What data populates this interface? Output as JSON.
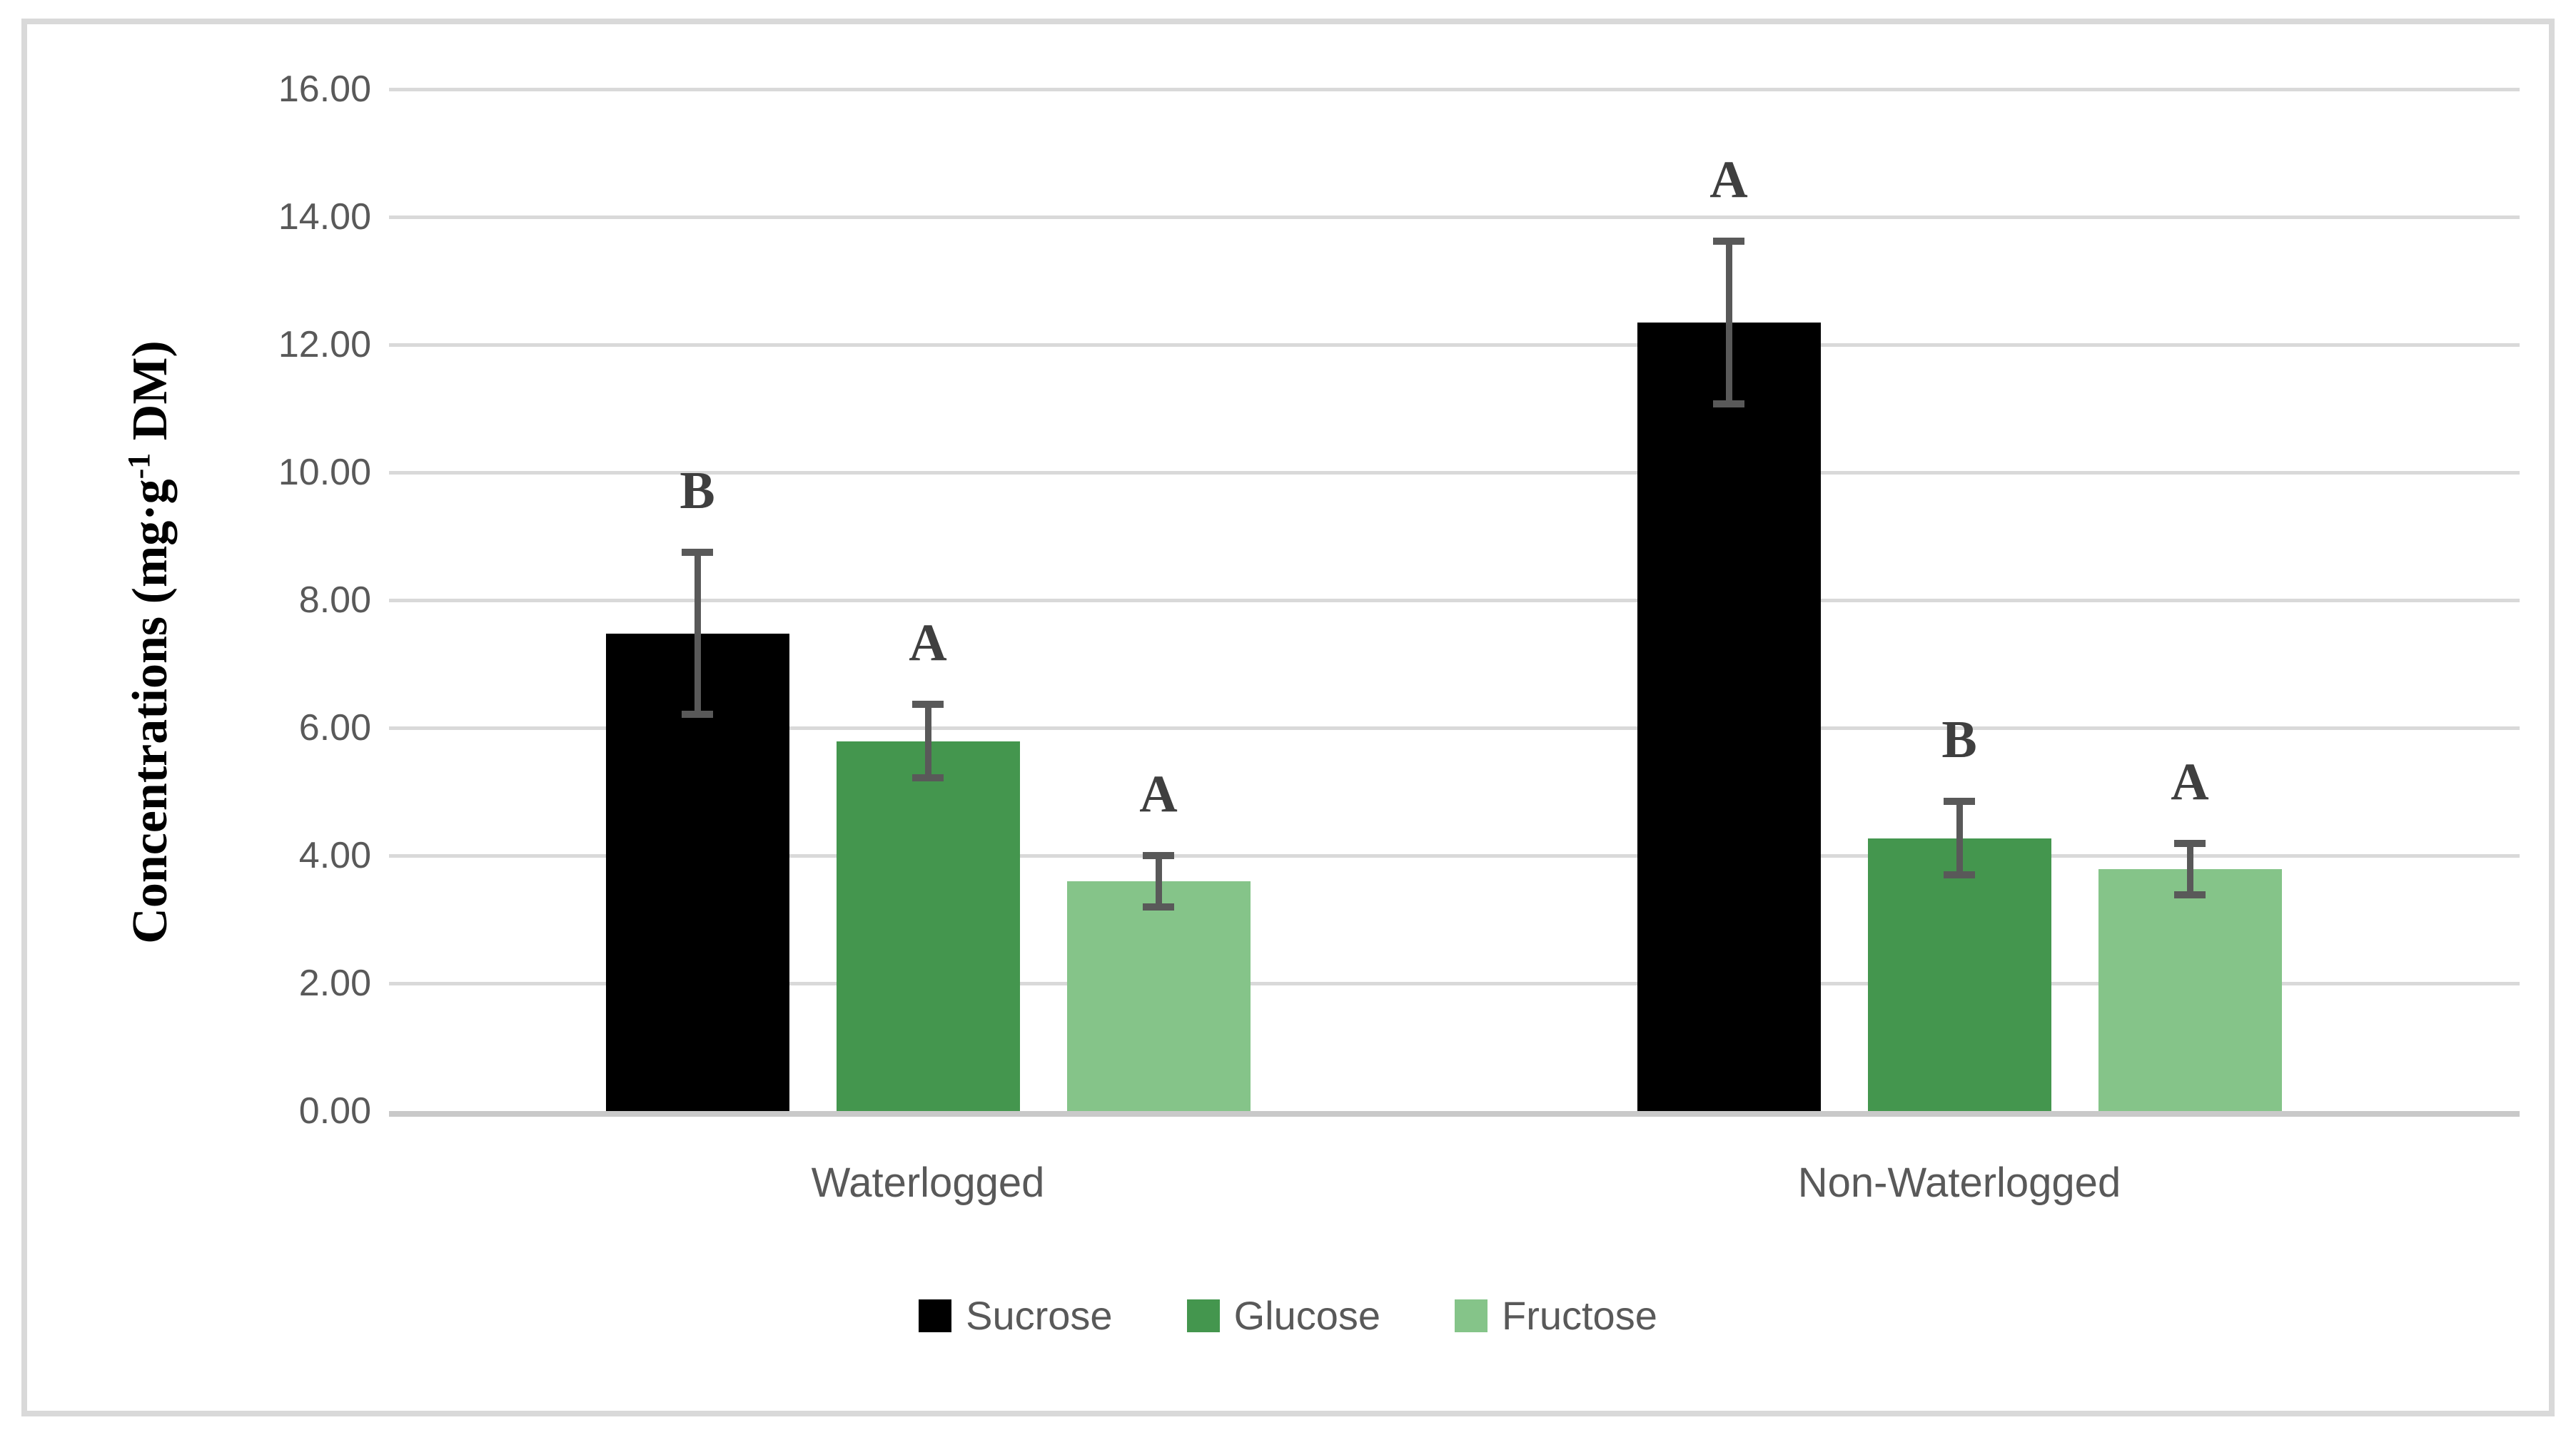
{
  "chart_data": {
    "type": "bar",
    "title": "",
    "categories": [
      "Waterlogged",
      "Non-Waterlogged"
    ],
    "series": [
      {
        "name": "Sucrose",
        "color": "#000000",
        "values": [
          7.48,
          12.35
        ],
        "errors": [
          1.32,
          1.33
        ],
        "letters": [
          "B",
          "A"
        ]
      },
      {
        "name": "Glucose",
        "color": "#44964E",
        "values": [
          5.79,
          4.27
        ],
        "errors": [
          0.63,
          0.63
        ],
        "letters": [
          "A",
          "B"
        ]
      },
      {
        "name": "Fructose",
        "color": "#85C489",
        "values": [
          3.6,
          3.79
        ],
        "errors": [
          0.46,
          0.46
        ],
        "letters": [
          "A",
          "A"
        ]
      }
    ],
    "ylabel": {
      "pre": "Concentrations (mg·g",
      "sup": "-1",
      "post": " DM)"
    },
    "xlabel": "",
    "ylim": [
      0,
      16
    ],
    "yticks": [
      {
        "value": 0,
        "label": "0.00"
      },
      {
        "value": 2,
        "label": "2.00"
      },
      {
        "value": 4,
        "label": "4.00"
      },
      {
        "value": 6,
        "label": "6.00"
      },
      {
        "value": 8,
        "label": "8.00"
      },
      {
        "value": 10,
        "label": "10.00"
      },
      {
        "value": 12,
        "label": "12.00"
      },
      {
        "value": 14,
        "label": "14.00"
      },
      {
        "value": 16,
        "label": "16.00"
      }
    ],
    "grid": true,
    "error_bars": true,
    "legend_position": "bottom"
  },
  "colors": {
    "bar_sucrose": "#000000",
    "bar_glucose": "#44964E",
    "bar_fructose": "#85C489",
    "error_bar": "#595959",
    "significance_letter": "#3F3F3F",
    "axis_text": "#595959",
    "gridline": "#D9D9D9",
    "axis_line": "#C9C9C9",
    "chart_border": "#D9D9D9",
    "background": "#FFFFFF"
  }
}
